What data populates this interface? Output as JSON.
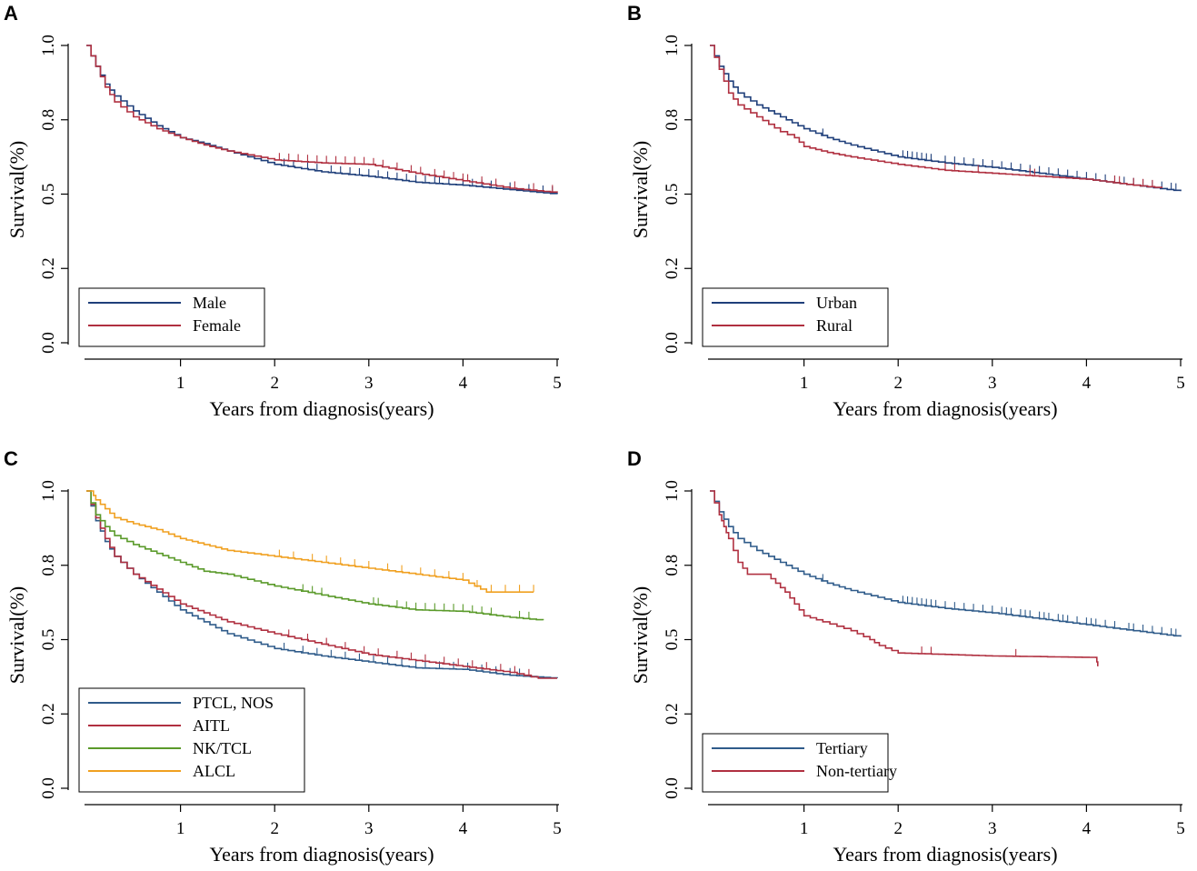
{
  "chart_data": [
    {
      "panel": "A",
      "type": "line",
      "xlabel": "Years from diagnosis(years)",
      "ylabel": "Survival(%)",
      "xlim": [
        0,
        5
      ],
      "ylim": [
        0,
        1
      ],
      "xticks": [
        "1",
        "2",
        "3",
        "4",
        "5"
      ],
      "yticks": [
        "0.0",
        "0.2",
        "0.5",
        "0.8",
        "1.0"
      ],
      "legend_position": "bottom-left",
      "series": [
        {
          "name": "Male",
          "color": "#1f3f7a",
          "x": [
            0,
            0.1,
            0.2,
            0.3,
            0.5,
            0.75,
            1.0,
            1.25,
            1.5,
            2.0,
            2.5,
            3.0,
            3.5,
            4.0,
            4.5,
            5.0
          ],
          "y": [
            1.0,
            0.93,
            0.87,
            0.83,
            0.78,
            0.73,
            0.69,
            0.67,
            0.645,
            0.6,
            0.575,
            0.56,
            0.54,
            0.53,
            0.515,
            0.5
          ],
          "censors": [
            2.1,
            2.2,
            2.35,
            2.45,
            2.6,
            2.7,
            2.8,
            2.9,
            3.0,
            3.1,
            3.2,
            3.3,
            3.4,
            3.5,
            3.6,
            3.7,
            3.75,
            3.85,
            4.0,
            4.1,
            4.2,
            4.3,
            4.5,
            4.7,
            4.85,
            4.95
          ]
        },
        {
          "name": "Female",
          "color": "#b03040",
          "x": [
            0,
            0.1,
            0.2,
            0.3,
            0.5,
            0.75,
            1.0,
            1.25,
            1.5,
            2.0,
            2.5,
            3.0,
            3.5,
            4.0,
            4.5,
            5.0
          ],
          "y": [
            1.0,
            0.93,
            0.86,
            0.81,
            0.76,
            0.72,
            0.69,
            0.665,
            0.645,
            0.615,
            0.605,
            0.6,
            0.57,
            0.545,
            0.52,
            0.505
          ],
          "censors": [
            2.05,
            2.15,
            2.25,
            2.35,
            2.45,
            2.55,
            2.65,
            2.75,
            2.85,
            2.95,
            3.05,
            3.15,
            3.3,
            3.45,
            3.55,
            3.7,
            3.8,
            3.9,
            4.0,
            4.05,
            4.2,
            4.35,
            4.55,
            4.75,
            4.95
          ]
        }
      ]
    },
    {
      "panel": "B",
      "type": "line",
      "xlabel": "Years from diagnosis(years)",
      "ylabel": "Survival(%)",
      "xlim": [
        0,
        5
      ],
      "ylim": [
        0,
        1
      ],
      "xticks": [
        "1",
        "2",
        "3",
        "4",
        "5"
      ],
      "yticks": [
        "0.0",
        "0.2",
        "0.5",
        "0.8",
        "1.0"
      ],
      "legend_position": "bottom-left",
      "series": [
        {
          "name": "Urban",
          "color": "#1f3f7a",
          "x": [
            0,
            0.1,
            0.2,
            0.3,
            0.5,
            0.75,
            1.0,
            1.25,
            1.5,
            2.0,
            2.5,
            3.0,
            3.5,
            4.0,
            4.5,
            5.0
          ],
          "y": [
            1.0,
            0.93,
            0.88,
            0.84,
            0.8,
            0.76,
            0.72,
            0.69,
            0.665,
            0.625,
            0.605,
            0.59,
            0.57,
            0.55,
            0.53,
            0.51
          ],
          "censors": [
            1.2,
            2.05,
            2.1,
            2.15,
            2.2,
            2.25,
            2.3,
            2.35,
            2.5,
            2.6,
            2.7,
            2.8,
            2.9,
            3.0,
            3.1,
            3.2,
            3.3,
            3.4,
            3.5,
            3.6,
            3.7,
            3.8,
            3.9,
            4.0,
            4.1,
            4.2,
            4.3,
            4.4,
            4.5,
            4.6,
            4.7,
            4.8,
            4.9,
            4.95
          ]
        },
        {
          "name": "Rural",
          "color": "#b03040",
          "x": [
            0,
            0.1,
            0.2,
            0.3,
            0.5,
            0.75,
            0.9,
            1.0,
            1.25,
            1.5,
            2.0,
            2.5,
            3.0,
            3.5,
            4.0,
            4.5,
            4.8
          ],
          "y": [
            1.0,
            0.92,
            0.84,
            0.8,
            0.76,
            0.71,
            0.69,
            0.66,
            0.64,
            0.625,
            0.6,
            0.58,
            0.57,
            0.56,
            0.55,
            0.53,
            0.52
          ],
          "censors": [
            2.5,
            2.6,
            2.85,
            3.4,
            3.45,
            4.3,
            4.35,
            4.5,
            4.6,
            4.7
          ]
        }
      ]
    },
    {
      "panel": "C",
      "type": "line",
      "xlabel": "Years from diagnosis(years)",
      "ylabel": "Survival(%)",
      "xlim": [
        0,
        5
      ],
      "ylim": [
        0,
        1
      ],
      "xticks": [
        "1",
        "2",
        "3",
        "4",
        "5"
      ],
      "yticks": [
        "0.0",
        "0.2",
        "0.5",
        "0.8",
        "1.0"
      ],
      "legend_position": "bottom-left",
      "series": [
        {
          "name": "PTCL, NOS",
          "color": "#2f5b8a",
          "x": [
            0,
            0.1,
            0.2,
            0.3,
            0.5,
            0.75,
            1.0,
            1.25,
            1.5,
            2.0,
            2.5,
            3.0,
            3.5,
            4.0,
            4.5,
            5.0
          ],
          "y": [
            1.0,
            0.9,
            0.83,
            0.78,
            0.72,
            0.66,
            0.6,
            0.56,
            0.52,
            0.47,
            0.445,
            0.425,
            0.405,
            0.4,
            0.38,
            0.37
          ],
          "censors": [
            2.1,
            2.3,
            2.45,
            2.6,
            2.75,
            2.9,
            3.05,
            3.2,
            3.35,
            3.5,
            3.6,
            3.75,
            3.9,
            4.05,
            4.2,
            4.35,
            4.5,
            4.6
          ]
        },
        {
          "name": "AITL",
          "color": "#b03040",
          "x": [
            0,
            0.1,
            0.2,
            0.3,
            0.5,
            0.75,
            1.0,
            1.25,
            1.5,
            2.0,
            2.5,
            3.0,
            3.5,
            4.0,
            4.5,
            4.8,
            5.0
          ],
          "y": [
            1.0,
            0.91,
            0.84,
            0.78,
            0.72,
            0.67,
            0.62,
            0.59,
            0.56,
            0.52,
            0.485,
            0.45,
            0.43,
            0.41,
            0.39,
            0.37,
            0.37
          ],
          "censors": [
            2.15,
            2.35,
            2.55,
            2.75,
            2.95,
            3.1,
            3.3,
            3.45,
            3.6,
            3.8,
            3.95,
            4.1,
            4.25,
            4.4,
            4.55,
            4.7
          ]
        },
        {
          "name": "NK/TCL",
          "color": "#5a9a2a",
          "x": [
            0,
            0.1,
            0.2,
            0.3,
            0.5,
            0.75,
            1.0,
            1.25,
            1.5,
            2.0,
            2.5,
            3.0,
            3.5,
            4.0,
            4.5,
            4.85
          ],
          "y": [
            1.0,
            0.92,
            0.88,
            0.85,
            0.82,
            0.79,
            0.76,
            0.73,
            0.72,
            0.68,
            0.65,
            0.62,
            0.6,
            0.595,
            0.575,
            0.565
          ],
          "censors": [
            2.3,
            2.4,
            2.5,
            3.05,
            3.1,
            3.3,
            3.4,
            3.5,
            3.6,
            3.7,
            3.8,
            3.9,
            4.0,
            4.1,
            4.2,
            4.3,
            4.6,
            4.7
          ]
        },
        {
          "name": "ALCL",
          "color": "#f0a020",
          "x": [
            0,
            0.05,
            0.1,
            0.2,
            0.3,
            0.5,
            0.75,
            1.0,
            1.25,
            1.5,
            2.0,
            2.5,
            3.0,
            3.5,
            4.0,
            4.25,
            4.75
          ],
          "y": [
            1.0,
            1.0,
            0.97,
            0.94,
            0.91,
            0.89,
            0.87,
            0.84,
            0.82,
            0.8,
            0.78,
            0.76,
            0.74,
            0.72,
            0.7,
            0.66,
            0.66
          ],
          "censors": [
            2.05,
            2.2,
            2.4,
            2.55,
            2.7,
            2.85,
            3.0,
            3.2,
            3.35,
            3.55,
            3.7,
            3.85,
            4.0,
            4.15,
            4.3,
            4.45,
            4.6,
            4.75
          ]
        }
      ]
    },
    {
      "panel": "D",
      "type": "line",
      "xlabel": "Years from diagnosis(years)",
      "ylabel": "Survival(%)",
      "xlim": [
        0,
        5
      ],
      "ylim": [
        0,
        1
      ],
      "xticks": [
        "1",
        "2",
        "3",
        "4",
        "5"
      ],
      "yticks": [
        "0.0",
        "0.2",
        "0.5",
        "0.8",
        "1.0"
      ],
      "legend_position": "bottom-left",
      "series": [
        {
          "name": "Tertiary",
          "color": "#2f5b8a",
          "x": [
            0,
            0.1,
            0.2,
            0.3,
            0.5,
            0.75,
            1.0,
            1.25,
            1.5,
            2.0,
            2.5,
            3.0,
            3.5,
            4.0,
            4.5,
            5.0
          ],
          "y": [
            1.0,
            0.93,
            0.88,
            0.84,
            0.8,
            0.76,
            0.72,
            0.69,
            0.665,
            0.625,
            0.605,
            0.59,
            0.57,
            0.55,
            0.53,
            0.51
          ],
          "censors": [
            1.2,
            2.05,
            2.1,
            2.15,
            2.2,
            2.25,
            2.3,
            2.35,
            2.4,
            2.5,
            2.6,
            2.7,
            2.8,
            2.9,
            3.0,
            3.1,
            3.15,
            3.2,
            3.3,
            3.35,
            3.4,
            3.5,
            3.55,
            3.6,
            3.7,
            3.75,
            3.8,
            3.9,
            4.0,
            4.05,
            4.1,
            4.2,
            4.3,
            4.45,
            4.5,
            4.6,
            4.7,
            4.8,
            4.9,
            4.95
          ]
        },
        {
          "name": "Non-tertiary",
          "color": "#b03040",
          "x": [
            0,
            0.1,
            0.15,
            0.2,
            0.3,
            0.4,
            0.6,
            0.7,
            0.8,
            0.9,
            1.0,
            1.2,
            1.5,
            1.7,
            1.8,
            2.0,
            3.0,
            4.1,
            4.12
          ],
          "y": [
            1.0,
            0.92,
            0.88,
            0.84,
            0.76,
            0.72,
            0.72,
            0.69,
            0.66,
            0.62,
            0.58,
            0.56,
            0.53,
            0.5,
            0.48,
            0.455,
            0.445,
            0.44,
            0.41
          ],
          "censors": [
            2.25,
            2.35,
            3.25
          ]
        }
      ]
    }
  ]
}
